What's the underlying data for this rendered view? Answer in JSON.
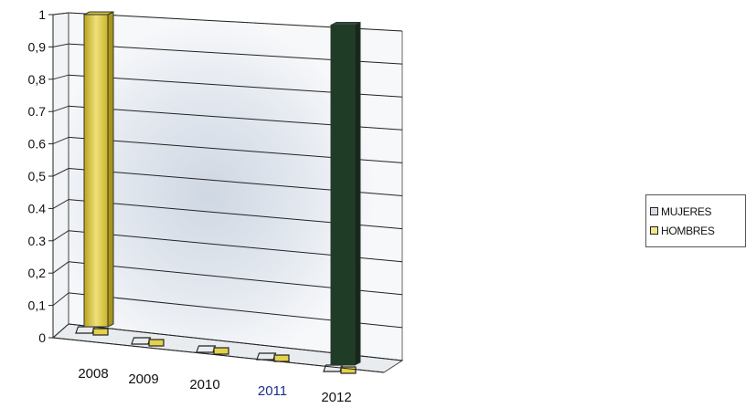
{
  "chart_data": {
    "type": "bar",
    "categories": [
      "2008",
      "2009",
      "2010",
      "2011",
      "2012"
    ],
    "series": [
      {
        "name": "MUJERES",
        "values": [
          0,
          0,
          0,
          0,
          0.97
        ],
        "color": "#1f3d26"
      },
      {
        "name": "HOMBRES",
        "values": [
          1,
          0,
          0,
          0,
          0
        ],
        "color": "#e3d24a"
      }
    ],
    "y_ticks": [
      "0",
      "0,1",
      "0,2",
      "0.3",
      "0.4",
      "0,5",
      "0.6",
      "0.7",
      "0,8",
      "0,9",
      "1"
    ],
    "ylim": [
      0,
      1
    ],
    "grid": true,
    "legend_position": "right",
    "category_label_colors": [
      "#111111",
      "#111111",
      "#111111",
      "#1b2f8a",
      "#111111"
    ]
  }
}
